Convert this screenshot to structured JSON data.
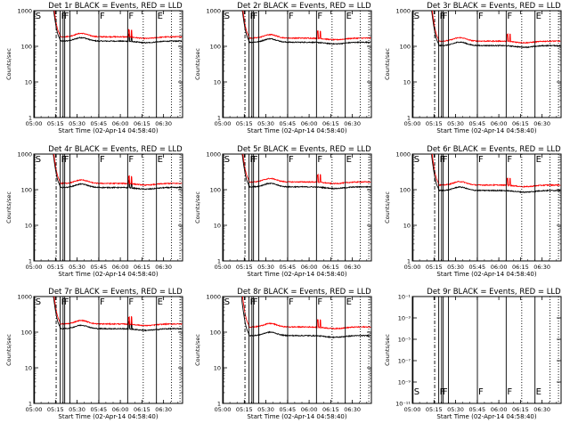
{
  "chart_data": {
    "type": "line",
    "x_tick_labels": [
      "05:00",
      "05:15",
      "05:30",
      "05:45",
      "06:00",
      "06:15",
      "06:30"
    ],
    "x_range_hours": [
      5.0,
      6.72
    ],
    "xlabel": "Start Time (02-Apr-14 04:58:40)",
    "ylabel": "Counts/sec",
    "y_scale": "log",
    "colors": {
      "events": "#000000",
      "lld": "#ff0000"
    },
    "vertical_markers": [
      {
        "label": "S",
        "time": 5.008,
        "style": "solid"
      },
      {
        "label": "",
        "time": 5.258,
        "style": "dashdot"
      },
      {
        "label": "F",
        "time": 5.305,
        "style": "solid"
      },
      {
        "label": "F",
        "time": 5.338,
        "style": "solid"
      },
      {
        "label": "",
        "time": 5.357,
        "style": "solid"
      },
      {
        "label": "",
        "time": 5.418,
        "style": "solid"
      },
      {
        "label": "F",
        "time": 5.752,
        "style": "solid"
      },
      {
        "label": "F",
        "time": 6.085,
        "style": "solid"
      },
      {
        "label": "E",
        "time": 6.418,
        "style": "solid"
      },
      {
        "label": "",
        "time": 6.265,
        "style": "dotted"
      },
      {
        "label": "",
        "time": 6.592,
        "style": "dotted"
      },
      {
        "label": "",
        "time": 6.69,
        "style": "dotted"
      }
    ],
    "panels": [
      {
        "title": "Det 1r BLACK = Events, RED = LLD",
        "ylim": [
          1,
          1000
        ],
        "y_ticks": [
          "1",
          "10",
          "100",
          "1000"
        ],
        "events_level": 140,
        "lld_level": 185,
        "has_data": true
      },
      {
        "title": "Det 2r BLACK = Events, RED = LLD",
        "ylim": [
          1,
          1000
        ],
        "y_ticks": [
          "1",
          "10",
          "100",
          "1000"
        ],
        "events_level": 130,
        "lld_level": 170,
        "has_data": true
      },
      {
        "title": "Det 3r BLACK = Events, RED = LLD",
        "ylim": [
          1,
          1000
        ],
        "y_ticks": [
          "1",
          "10",
          "100",
          "1000"
        ],
        "events_level": 105,
        "lld_level": 140,
        "has_data": true
      },
      {
        "title": "Det 4r BLACK = Events, RED = LLD",
        "ylim": [
          1,
          1000
        ],
        "y_ticks": [
          "1",
          "10",
          "100",
          "1000"
        ],
        "events_level": 115,
        "lld_level": 150,
        "has_data": true
      },
      {
        "title": "Det 5r BLACK = Events, RED = LLD",
        "ylim": [
          1,
          1000
        ],
        "y_ticks": [
          "1",
          "10",
          "100",
          "1000"
        ],
        "events_level": 120,
        "lld_level": 165,
        "has_data": true
      },
      {
        "title": "Det 6r BLACK = Events, RED = LLD",
        "ylim": [
          1,
          1000
        ],
        "y_ticks": [
          "1",
          "10",
          "100",
          "1000"
        ],
        "events_level": 95,
        "lld_level": 135,
        "has_data": true
      },
      {
        "title": "Det 7r BLACK = Events, RED = LLD",
        "ylim": [
          1,
          1000
        ],
        "y_ticks": [
          "1",
          "10",
          "100",
          "1000"
        ],
        "events_level": 125,
        "lld_level": 170,
        "has_data": true
      },
      {
        "title": "Det 8r BLACK = Events, RED = LLD",
        "ylim": [
          1,
          1000
        ],
        "y_ticks": [
          "1",
          "10",
          "100",
          "1000"
        ],
        "events_level": 80,
        "lld_level": 140,
        "has_data": true
      },
      {
        "title": "Det 9r BLACK = Events, RED = LLD",
        "ylim": [
          1e-11,
          0.1
        ],
        "y_ticks": [
          "10⁻¹¹",
          "10⁻⁹",
          "10⁻⁷",
          "10⁻⁵",
          "10⁻³",
          "10⁻¹"
        ],
        "events_level": null,
        "lld_level": null,
        "has_data": false
      }
    ]
  }
}
